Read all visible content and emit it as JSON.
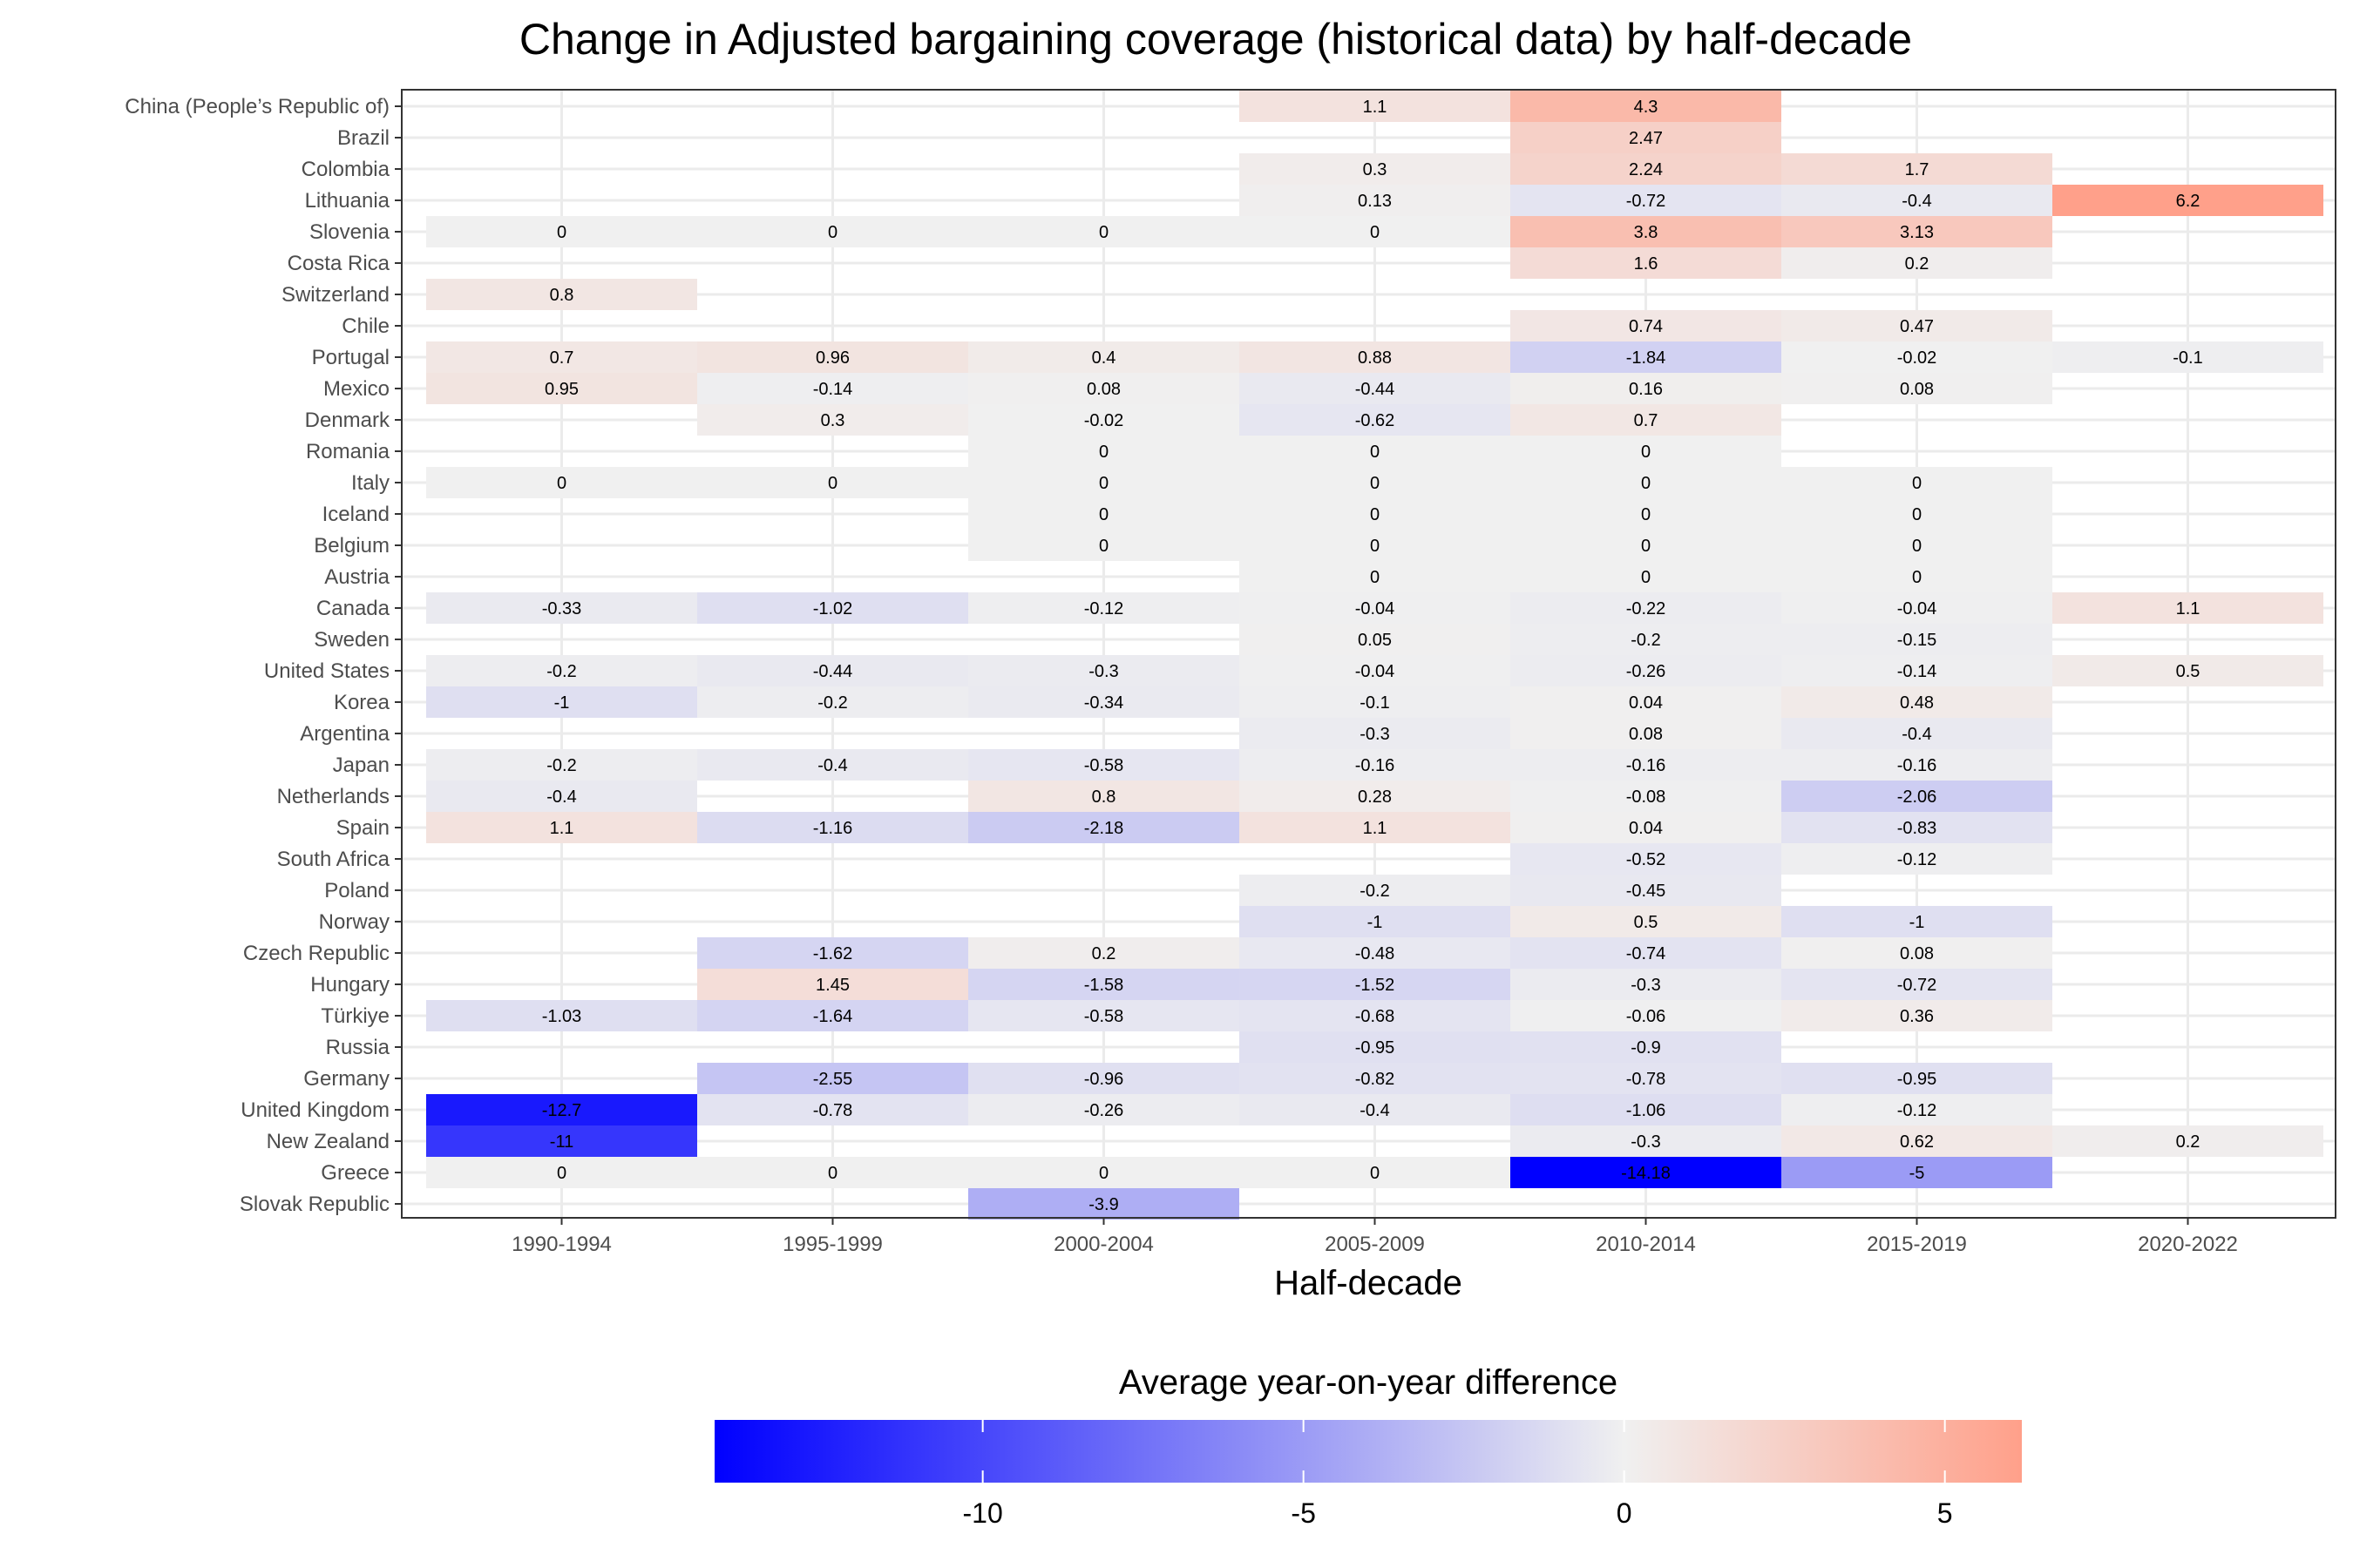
{
  "chart_data": {
    "type": "heatmap",
    "title": "Change in Adjusted bargaining coverage (historical data) by half-decade",
    "xlabel": "Half-decade",
    "ylabel": "",
    "x_categories": [
      "1990-1994",
      "1995-1999",
      "2000-2004",
      "2005-2009",
      "2010-2014",
      "2015-2019",
      "2020-2022"
    ],
    "y_categories": [
      "China (People’s Republic of)",
      "Brazil",
      "Colombia",
      "Lithuania",
      "Slovenia",
      "Costa Rica",
      "Switzerland",
      "Chile",
      "Portugal",
      "Mexico",
      "Denmark",
      "Romania",
      "Italy",
      "Iceland",
      "Belgium",
      "Austria",
      "Canada",
      "Sweden",
      "United States",
      "Korea",
      "Argentina",
      "Japan",
      "Netherlands",
      "Spain",
      "South Africa",
      "Poland",
      "Norway",
      "Czech Republic",
      "Hungary",
      "Türkiye",
      "Russia",
      "Germany",
      "United Kingdom",
      "New Zealand",
      "Greece",
      "Slovak Republic"
    ],
    "values": [
      [
        null,
        null,
        null,
        1.1,
        4.3,
        null,
        null
      ],
      [
        null,
        null,
        null,
        null,
        2.47,
        null,
        null
      ],
      [
        null,
        null,
        null,
        0.3,
        2.24,
        1.7,
        null
      ],
      [
        null,
        null,
        null,
        0.13,
        -0.72,
        -0.4,
        6.2
      ],
      [
        0,
        0,
        0,
        0,
        3.8,
        3.13,
        null
      ],
      [
        null,
        null,
        null,
        null,
        1.6,
        0.2,
        null
      ],
      [
        0.8,
        null,
        null,
        null,
        null,
        null,
        null
      ],
      [
        null,
        null,
        null,
        null,
        0.74,
        0.47,
        null
      ],
      [
        0.7,
        0.96,
        0.4,
        0.88,
        -1.84,
        -0.02,
        -0.1
      ],
      [
        0.95,
        -0.14,
        0.08,
        -0.44,
        0.16,
        0.08,
        null
      ],
      [
        null,
        0.3,
        -0.02,
        -0.62,
        0.7,
        null,
        null
      ],
      [
        null,
        null,
        0,
        0,
        0,
        null,
        null
      ],
      [
        0,
        0,
        0,
        0,
        0,
        0,
        null
      ],
      [
        null,
        null,
        0,
        0,
        0,
        0,
        null
      ],
      [
        null,
        null,
        0,
        0,
        0,
        0,
        null
      ],
      [
        null,
        null,
        null,
        0,
        0,
        0,
        null
      ],
      [
        -0.33,
        -1.02,
        -0.12,
        -0.04,
        -0.22,
        -0.04,
        1.1
      ],
      [
        null,
        null,
        null,
        0.05,
        -0.2,
        -0.15,
        null
      ],
      [
        -0.2,
        -0.44,
        -0.3,
        -0.04,
        -0.26,
        -0.14,
        0.5
      ],
      [
        -1,
        -0.2,
        -0.34,
        -0.1,
        0.04,
        0.48,
        null
      ],
      [
        null,
        null,
        null,
        -0.3,
        0.08,
        -0.4,
        null
      ],
      [
        -0.2,
        -0.4,
        -0.58,
        -0.16,
        -0.16,
        -0.16,
        null
      ],
      [
        -0.4,
        null,
        0.8,
        0.28,
        -0.08,
        -2.06,
        null
      ],
      [
        1.1,
        -1.16,
        -2.18,
        1.1,
        0.04,
        -0.83,
        null
      ],
      [
        null,
        null,
        null,
        null,
        -0.52,
        -0.12,
        null
      ],
      [
        null,
        null,
        null,
        -0.2,
        -0.45,
        null,
        null
      ],
      [
        null,
        null,
        null,
        -1,
        0.5,
        -1,
        null
      ],
      [
        null,
        -1.62,
        0.2,
        -0.48,
        -0.74,
        0.08,
        null
      ],
      [
        null,
        1.45,
        -1.58,
        -1.52,
        -0.3,
        -0.72,
        null
      ],
      [
        -1.03,
        -1.64,
        -0.58,
        -0.68,
        -0.06,
        0.36,
        null
      ],
      [
        null,
        null,
        null,
        -0.95,
        -0.9,
        null,
        null
      ],
      [
        null,
        -2.55,
        -0.96,
        -0.82,
        -0.78,
        -0.95,
        null
      ],
      [
        -12.7,
        -0.78,
        -0.26,
        -0.4,
        -1.06,
        -0.12,
        null
      ],
      [
        -11,
        null,
        null,
        null,
        -0.3,
        0.62,
        0.2
      ],
      [
        0,
        0,
        0,
        0,
        -14.18,
        -5,
        null
      ],
      [
        null,
        null,
        -3.9,
        null,
        null,
        null,
        null
      ]
    ],
    "colorscale": {
      "low": "#0000ff",
      "mid": "#f0f0f0",
      "high": "#ffa08a",
      "midpoint": 0,
      "min": -14.18,
      "max": 6.2
    },
    "legend": {
      "title": "Average year-on-year difference",
      "position": "bottom",
      "ticks": [
        -10,
        -5,
        0,
        5
      ],
      "tick_labels": [
        "-10",
        "-5",
        "0",
        "5"
      ]
    },
    "grid": true
  }
}
